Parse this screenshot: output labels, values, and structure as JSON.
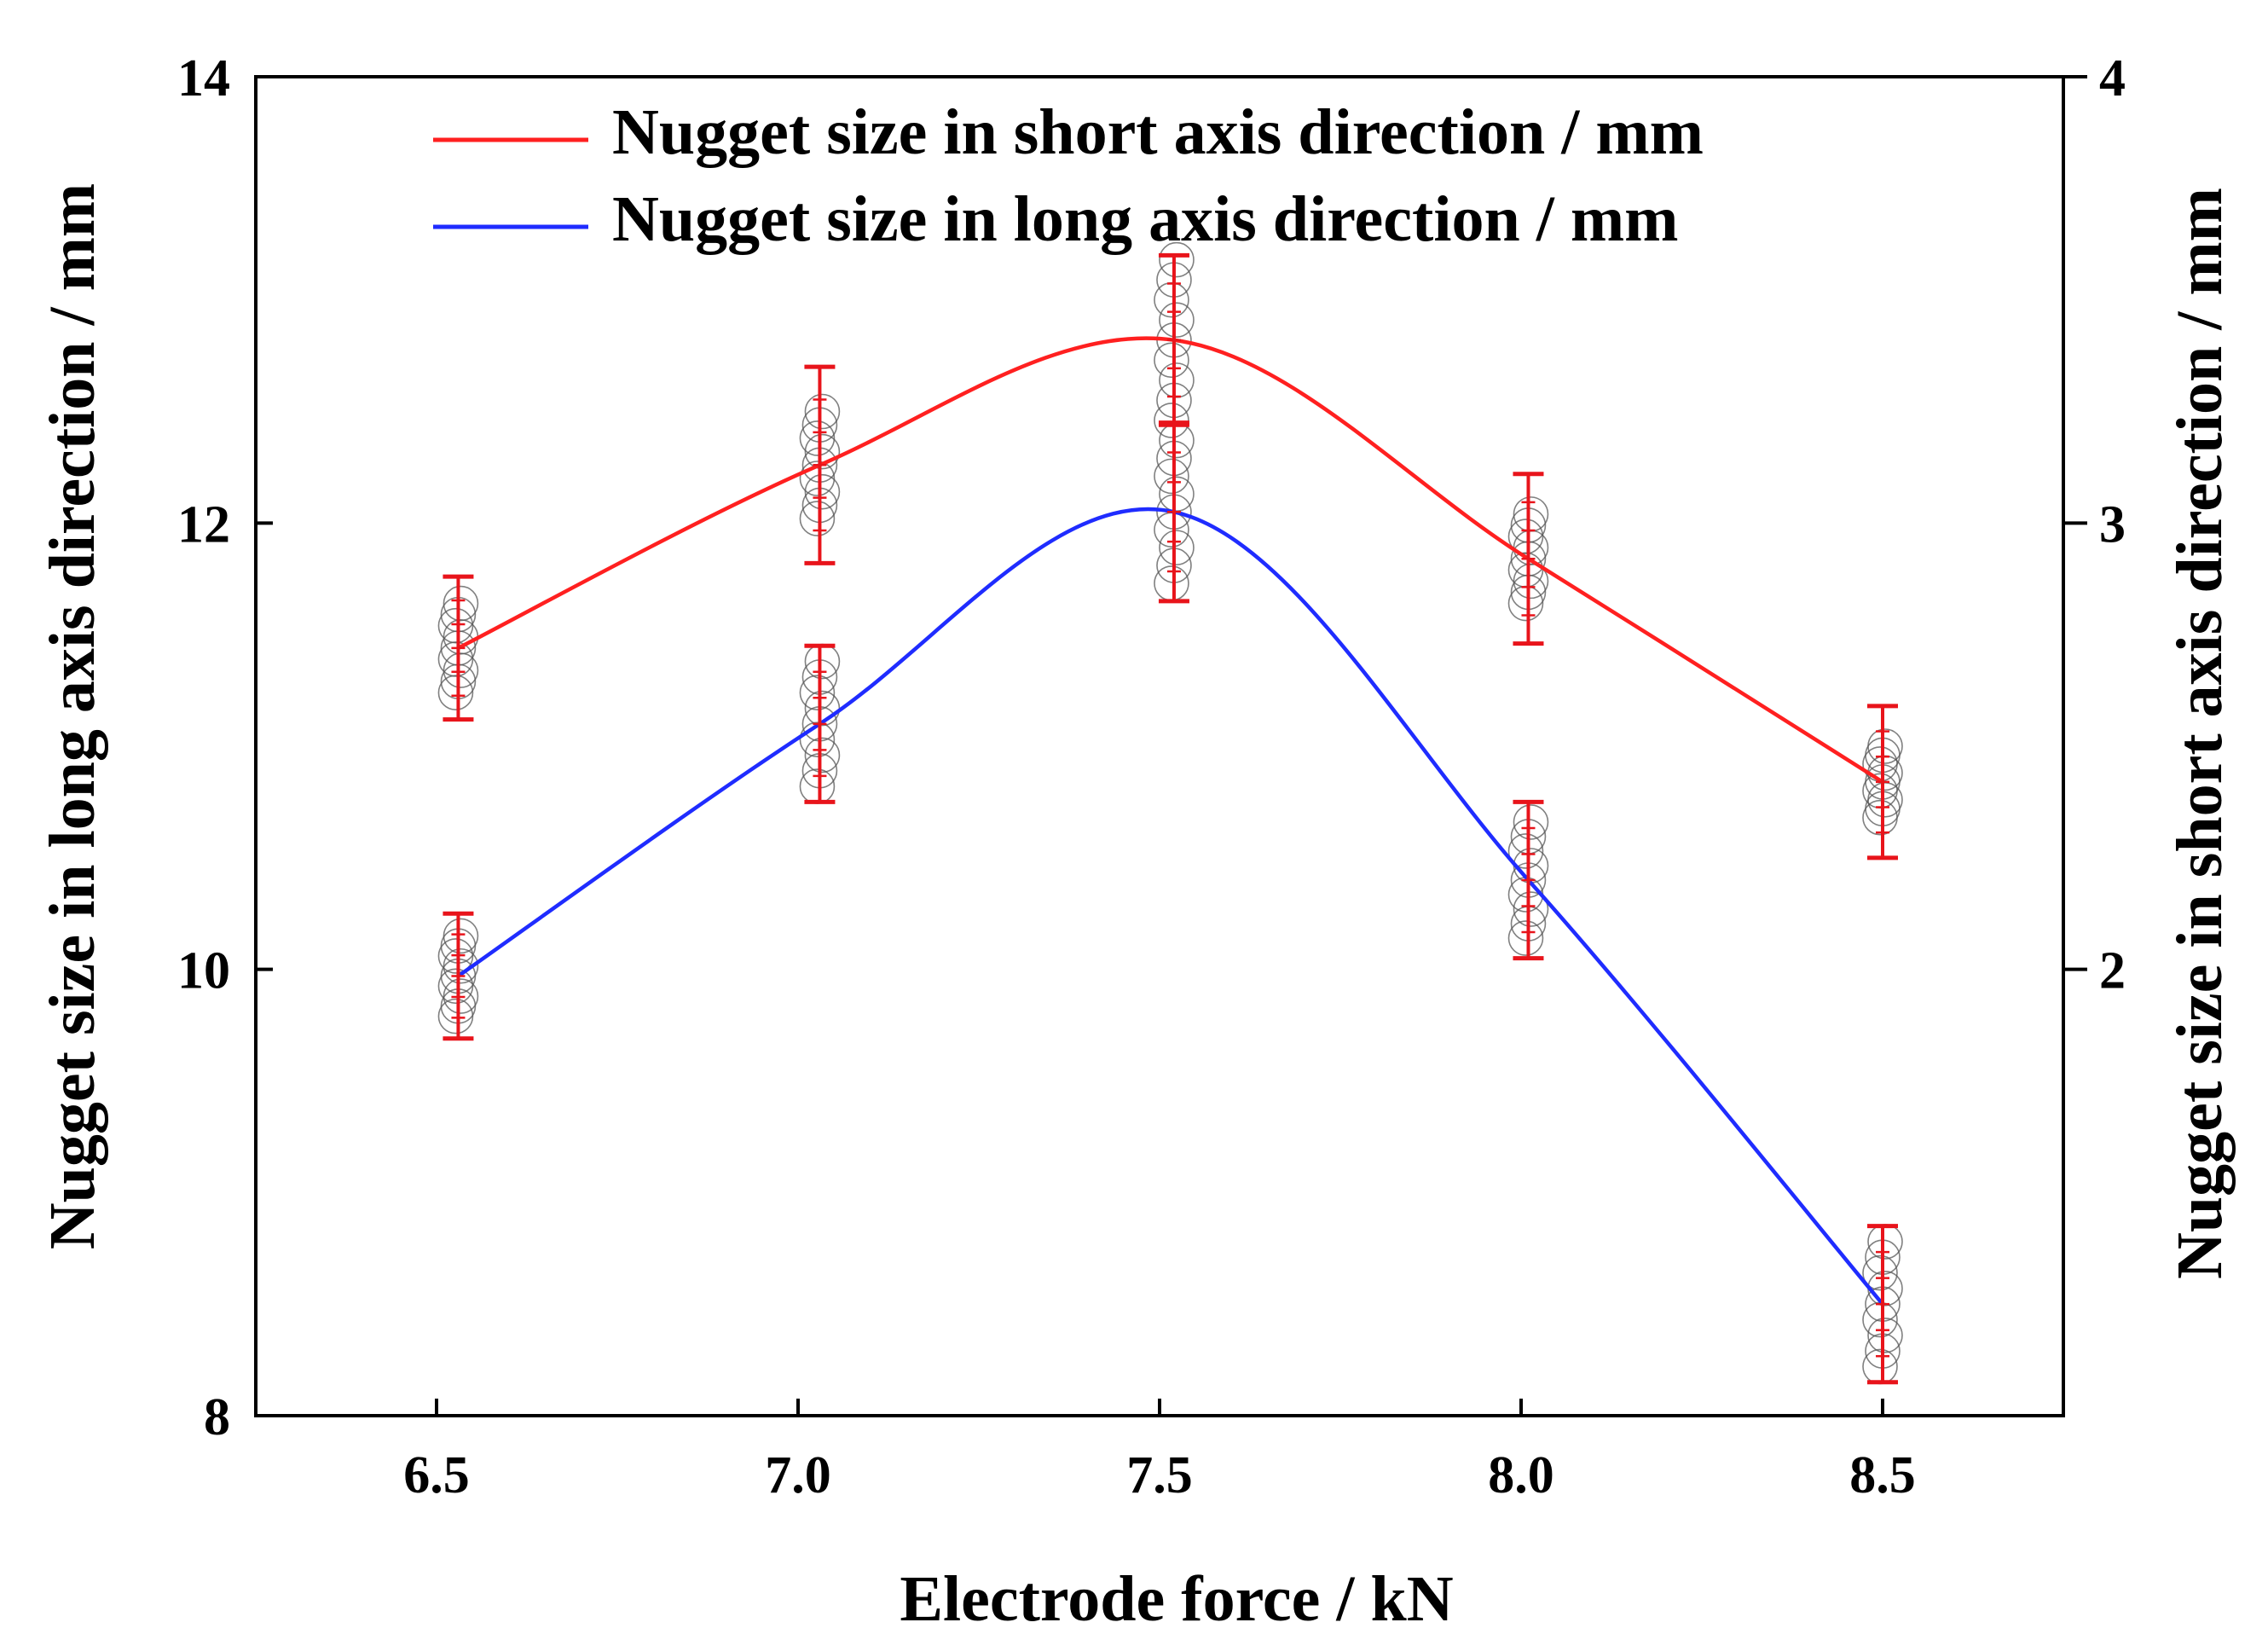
{
  "chart_data": {
    "type": "line",
    "xlabel": "Electrode force / kN",
    "ylabel_left": "Nugget size in long axis direction / mm",
    "ylabel_right": "Nugget size in short axis direction / mm",
    "x_ticks": [
      "6.5",
      "7.0",
      "7.5",
      "8.0",
      "8.5"
    ],
    "y_left_ticks": [
      "8",
      "10",
      "12",
      "14"
    ],
    "y_right_ticks": [
      "2",
      "3",
      "4"
    ],
    "xlim": [
      6.25,
      8.75
    ],
    "ylim_left": [
      8,
      14
    ],
    "ylim_right": [
      1.0,
      4.0
    ],
    "grid": false,
    "legend_position": "top",
    "series": [
      {
        "name": "Nugget size in short axis direction / mm",
        "axis": "right",
        "color": "#ff2020",
        "x": [
          6.53,
          7.03,
          7.52,
          8.01,
          8.5
        ],
        "values": [
          2.72,
          3.13,
          3.41,
          2.92,
          2.42
        ],
        "error": [
          0.16,
          0.22,
          0.19,
          0.19,
          0.17
        ],
        "scatter_spread": [
          0.1,
          0.12,
          0.18,
          0.1,
          0.08
        ]
      },
      {
        "name": "Nugget size in long axis direction / mm",
        "axis": "left",
        "color": "#1f2cff",
        "x": [
          6.53,
          7.03,
          7.52,
          8.01,
          8.5
        ],
        "values": [
          9.97,
          11.1,
          12.05,
          10.4,
          8.5
        ],
        "error": [
          0.28,
          0.35,
          0.4,
          0.35,
          0.35
        ],
        "scatter_spread": [
          0.18,
          0.28,
          0.32,
          0.26,
          0.28
        ]
      }
    ],
    "legend_entries": [
      "Nugget size in short axis direction / mm",
      "Nugget size in long axis direction / mm"
    ]
  }
}
